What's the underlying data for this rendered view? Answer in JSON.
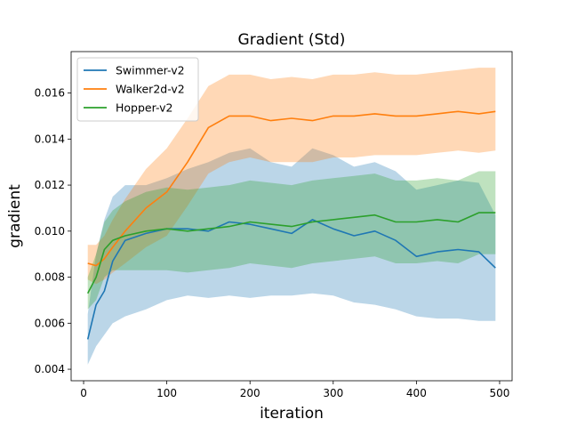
{
  "chart_data": {
    "type": "line",
    "title": "Gradient (Std)",
    "xlabel": "iteration",
    "ylabel": "gradient",
    "xlim": [
      -15,
      515
    ],
    "ylim": [
      0.0035,
      0.0178
    ],
    "xticks": [
      0,
      100,
      200,
      300,
      400,
      500
    ],
    "yticks": [
      0.004,
      0.006,
      0.008,
      0.01,
      0.012,
      0.014,
      0.016
    ],
    "ytick_labels": [
      "0.004",
      "0.006",
      "0.008",
      "0.010",
      "0.012",
      "0.014",
      "0.016"
    ],
    "grid": false,
    "legend": "top-left",
    "band_alpha": 0.3,
    "x": [
      5,
      15,
      25,
      35,
      50,
      75,
      100,
      125,
      150,
      175,
      200,
      225,
      250,
      275,
      300,
      325,
      350,
      375,
      400,
      425,
      450,
      475,
      495
    ],
    "series": [
      {
        "name": "Swimmer-v2",
        "color": "#1f77b4",
        "values": [
          0.0053,
          0.0068,
          0.0074,
          0.0087,
          0.0096,
          0.0099,
          0.0101,
          0.0101,
          0.01,
          0.0104,
          0.0103,
          0.0101,
          0.0099,
          0.0105,
          0.0101,
          0.0098,
          0.01,
          0.0096,
          0.0089,
          0.0091,
          0.0092,
          0.0091,
          0.0084
        ],
        "lower": [
          0.0042,
          0.005,
          0.0055,
          0.006,
          0.0063,
          0.0066,
          0.007,
          0.0072,
          0.0071,
          0.0072,
          0.0071,
          0.0072,
          0.0072,
          0.0073,
          0.0072,
          0.0069,
          0.0068,
          0.0066,
          0.0063,
          0.0062,
          0.0062,
          0.0061,
          0.0061
        ],
        "upper": [
          0.0064,
          0.009,
          0.0105,
          0.0115,
          0.012,
          0.012,
          0.0123,
          0.0127,
          0.013,
          0.0134,
          0.0136,
          0.013,
          0.0128,
          0.0136,
          0.0133,
          0.0128,
          0.013,
          0.0126,
          0.0118,
          0.012,
          0.0122,
          0.0121,
          0.0107
        ]
      },
      {
        "name": "Walker2d-v2",
        "color": "#ff7f0e",
        "values": [
          0.0086,
          0.0085,
          0.0088,
          0.0093,
          0.01,
          0.011,
          0.0117,
          0.013,
          0.0145,
          0.015,
          0.015,
          0.0148,
          0.0149,
          0.0148,
          0.015,
          0.015,
          0.0151,
          0.015,
          0.015,
          0.0151,
          0.0152,
          0.0151,
          0.0152
        ],
        "lower": [
          0.0079,
          0.0077,
          0.0079,
          0.0082,
          0.0086,
          0.0093,
          0.0098,
          0.0111,
          0.0125,
          0.013,
          0.0132,
          0.013,
          0.013,
          0.013,
          0.0132,
          0.0132,
          0.0133,
          0.0133,
          0.0133,
          0.0134,
          0.0135,
          0.0134,
          0.0135
        ],
        "upper": [
          0.0094,
          0.0094,
          0.0098,
          0.0105,
          0.0114,
          0.0127,
          0.0136,
          0.0149,
          0.0163,
          0.0168,
          0.0168,
          0.0166,
          0.0167,
          0.0166,
          0.0168,
          0.0168,
          0.0169,
          0.0168,
          0.0168,
          0.0169,
          0.017,
          0.0171,
          0.0171
        ]
      },
      {
        "name": "Hopper-v2",
        "color": "#2ca02c",
        "values": [
          0.0073,
          0.008,
          0.0092,
          0.0096,
          0.0098,
          0.01,
          0.0101,
          0.01,
          0.0101,
          0.0102,
          0.0104,
          0.0103,
          0.0102,
          0.0104,
          0.0105,
          0.0106,
          0.0107,
          0.0104,
          0.0104,
          0.0105,
          0.0104,
          0.0108,
          0.0108
        ],
        "lower": [
          0.0066,
          0.007,
          0.008,
          0.0083,
          0.0083,
          0.0083,
          0.0083,
          0.0082,
          0.0083,
          0.0084,
          0.0086,
          0.0085,
          0.0084,
          0.0086,
          0.0087,
          0.0088,
          0.0089,
          0.0086,
          0.0086,
          0.0087,
          0.0086,
          0.009,
          0.009
        ],
        "upper": [
          0.008,
          0.009,
          0.0104,
          0.0109,
          0.0113,
          0.0117,
          0.0119,
          0.0118,
          0.0119,
          0.012,
          0.0122,
          0.0121,
          0.012,
          0.0122,
          0.0123,
          0.0124,
          0.0125,
          0.0122,
          0.0122,
          0.0123,
          0.0122,
          0.0126,
          0.0126
        ]
      }
    ]
  }
}
